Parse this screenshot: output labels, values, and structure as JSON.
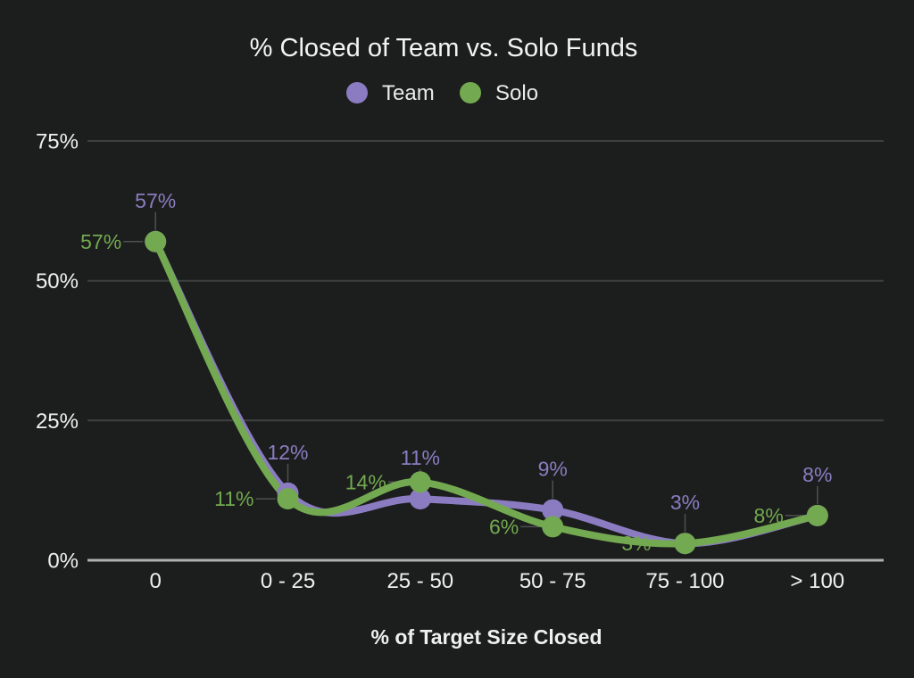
{
  "colors": {
    "background": "#1c1e1d",
    "grid": "#3d403f",
    "axis_line": "#aeb2b0",
    "leader_line": "#4d504f",
    "text": "#f0f0f0",
    "team": "#8b7cc1",
    "solo": "#73a950"
  },
  "chart_data": {
    "type": "line",
    "title": "% Closed of Team vs. Solo Funds",
    "xlabel": "% of Target Size Closed",
    "ylabel": "",
    "categories": [
      "0",
      "0 - 25",
      "25 - 50",
      "50 - 75",
      "75 - 100",
      "> 100"
    ],
    "series": [
      {
        "name": "Team",
        "color": "#8b7cc1",
        "values": [
          57,
          12,
          11,
          9,
          3,
          8
        ],
        "labels": [
          "57%",
          "12%",
          "11%",
          "9%",
          "3%",
          "8%"
        ],
        "label_placement": "above"
      },
      {
        "name": "Solo",
        "color": "#73a950",
        "values": [
          57,
          11,
          14,
          6,
          3,
          8
        ],
        "labels": [
          "57%",
          "11%",
          "14%",
          "6%",
          "3%",
          "8%"
        ],
        "label_placement": "left"
      }
    ],
    "y_ticks": [
      {
        "value": 0,
        "label": "0%"
      },
      {
        "value": 25,
        "label": "25%"
      },
      {
        "value": 50,
        "label": "50%"
      },
      {
        "value": 75,
        "label": "75%"
      }
    ],
    "ylim": [
      0,
      75
    ],
    "grid": true,
    "curve": "smooth",
    "legend_position": "top",
    "annotations": "visible"
  }
}
